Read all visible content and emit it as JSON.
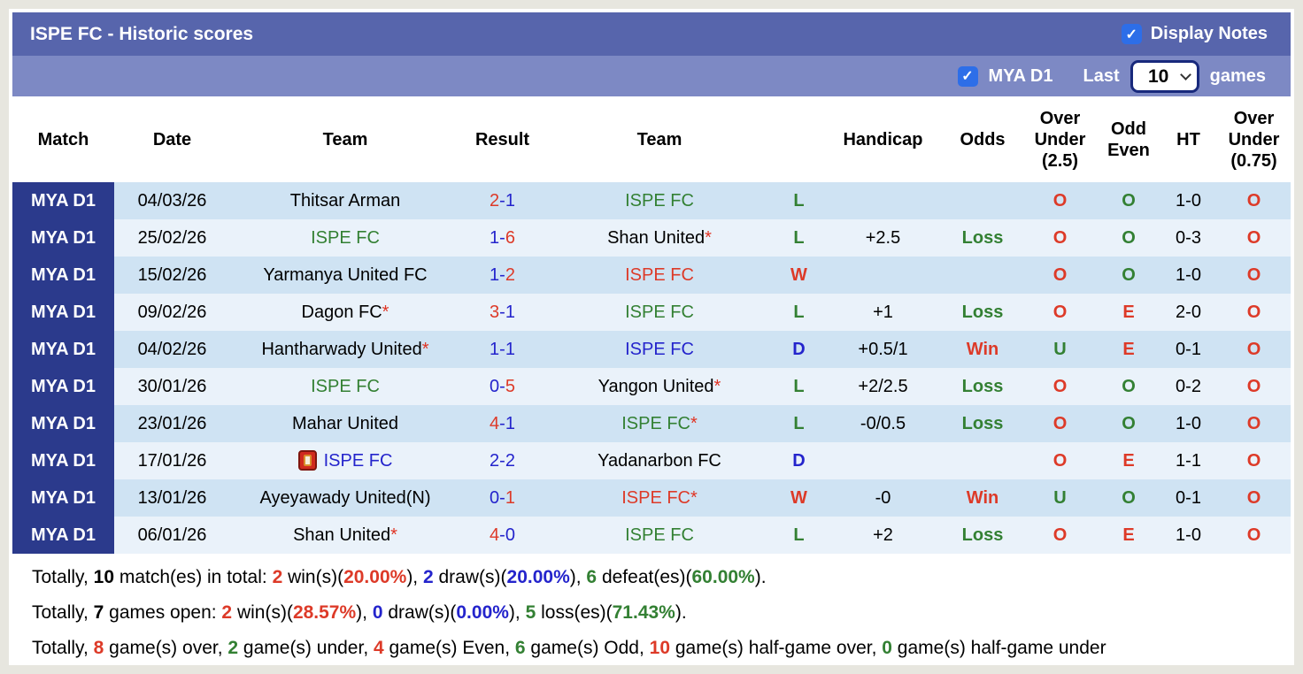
{
  "header": {
    "title": "ISPE FC - Historic scores",
    "display_notes_label": "Display Notes",
    "display_notes_checked": true
  },
  "filter": {
    "league_label": "MYA D1",
    "league_checked": true,
    "last_label": "Last",
    "games_count": "10",
    "games_label": "games"
  },
  "icons": {
    "checkmark": "✓",
    "red_card": "red-card-icon"
  },
  "colors": {
    "bar1": "#5765ac",
    "bar2": "#7d89c4",
    "badge": "#2b3a8c",
    "row_blue": "#cfe3f3",
    "row_light": "#eaf2fa",
    "win_red": "#dd3a28",
    "loss_green": "#338033",
    "draw_blue": "#2424cc",
    "checkbox_blue": "#2d6ee8"
  },
  "table": {
    "columns": [
      "Match",
      "Date",
      "Team",
      "Result",
      "Team",
      "",
      "Handicap",
      "Odds",
      "Over\nUnder\n(2.5)",
      "Odd\nEven",
      "HT",
      "Over\nUnder\n(0.75)"
    ],
    "rows": [
      {
        "match": "MYA D1",
        "date": "04/03/26",
        "home": {
          "name": "Thitsar Arman",
          "color": "black",
          "star": false,
          "icon": false
        },
        "score": {
          "home": "2",
          "home_color": "red",
          "away": "1",
          "away_color": "blue"
        },
        "away": {
          "name": "ISPE FC",
          "color": "green",
          "star": false,
          "icon": false
        },
        "wld": {
          "text": "L",
          "color": "green"
        },
        "handicap": "",
        "odds": {
          "text": "",
          "color": ""
        },
        "ou25": {
          "text": "O",
          "color": "red"
        },
        "oddeven": {
          "text": "O",
          "color": "green"
        },
        "ht": "1-0",
        "ou075": {
          "text": "O",
          "color": "red"
        }
      },
      {
        "match": "MYA D1",
        "date": "25/02/26",
        "home": {
          "name": "ISPE FC",
          "color": "green",
          "star": false,
          "icon": false
        },
        "score": {
          "home": "1",
          "home_color": "blue",
          "away": "6",
          "away_color": "red"
        },
        "away": {
          "name": "Shan United",
          "color": "black",
          "star": true,
          "icon": false
        },
        "wld": {
          "text": "L",
          "color": "green"
        },
        "handicap": "+2.5",
        "odds": {
          "text": "Loss",
          "color": "green"
        },
        "ou25": {
          "text": "O",
          "color": "red"
        },
        "oddeven": {
          "text": "O",
          "color": "green"
        },
        "ht": "0-3",
        "ou075": {
          "text": "O",
          "color": "red"
        }
      },
      {
        "match": "MYA D1",
        "date": "15/02/26",
        "home": {
          "name": "Yarmanya United FC",
          "color": "black",
          "star": false,
          "icon": false
        },
        "score": {
          "home": "1",
          "home_color": "blue",
          "away": "2",
          "away_color": "red"
        },
        "away": {
          "name": "ISPE FC",
          "color": "red",
          "star": false,
          "icon": false
        },
        "wld": {
          "text": "W",
          "color": "red"
        },
        "handicap": "",
        "odds": {
          "text": "",
          "color": ""
        },
        "ou25": {
          "text": "O",
          "color": "red"
        },
        "oddeven": {
          "text": "O",
          "color": "green"
        },
        "ht": "1-0",
        "ou075": {
          "text": "O",
          "color": "red"
        }
      },
      {
        "match": "MYA D1",
        "date": "09/02/26",
        "home": {
          "name": "Dagon FC",
          "color": "black",
          "star": true,
          "icon": false
        },
        "score": {
          "home": "3",
          "home_color": "red",
          "away": "1",
          "away_color": "blue"
        },
        "away": {
          "name": "ISPE FC",
          "color": "green",
          "star": false,
          "icon": false
        },
        "wld": {
          "text": "L",
          "color": "green"
        },
        "handicap": "+1",
        "odds": {
          "text": "Loss",
          "color": "green"
        },
        "ou25": {
          "text": "O",
          "color": "red"
        },
        "oddeven": {
          "text": "E",
          "color": "red"
        },
        "ht": "2-0",
        "ou075": {
          "text": "O",
          "color": "red"
        }
      },
      {
        "match": "MYA D1",
        "date": "04/02/26",
        "home": {
          "name": "Hantharwady United",
          "color": "black",
          "star": true,
          "icon": false
        },
        "score": {
          "home": "1",
          "home_color": "blue",
          "away": "1",
          "away_color": "blue"
        },
        "away": {
          "name": "ISPE FC",
          "color": "blue",
          "star": false,
          "icon": false
        },
        "wld": {
          "text": "D",
          "color": "blue"
        },
        "handicap": "+0.5/1",
        "odds": {
          "text": "Win",
          "color": "red"
        },
        "ou25": {
          "text": "U",
          "color": "green"
        },
        "oddeven": {
          "text": "E",
          "color": "red"
        },
        "ht": "0-1",
        "ou075": {
          "text": "O",
          "color": "red"
        }
      },
      {
        "match": "MYA D1",
        "date": "30/01/26",
        "home": {
          "name": "ISPE FC",
          "color": "green",
          "star": false,
          "icon": false
        },
        "score": {
          "home": "0",
          "home_color": "blue",
          "away": "5",
          "away_color": "red"
        },
        "away": {
          "name": "Yangon United",
          "color": "black",
          "star": true,
          "icon": false
        },
        "wld": {
          "text": "L",
          "color": "green"
        },
        "handicap": "+2/2.5",
        "odds": {
          "text": "Loss",
          "color": "green"
        },
        "ou25": {
          "text": "O",
          "color": "red"
        },
        "oddeven": {
          "text": "O",
          "color": "green"
        },
        "ht": "0-2",
        "ou075": {
          "text": "O",
          "color": "red"
        }
      },
      {
        "match": "MYA D1",
        "date": "23/01/26",
        "home": {
          "name": "Mahar United",
          "color": "black",
          "star": false,
          "icon": false
        },
        "score": {
          "home": "4",
          "home_color": "red",
          "away": "1",
          "away_color": "blue"
        },
        "away": {
          "name": "ISPE FC",
          "color": "green",
          "star": true,
          "icon": false
        },
        "wld": {
          "text": "L",
          "color": "green"
        },
        "handicap": "-0/0.5",
        "odds": {
          "text": "Loss",
          "color": "green"
        },
        "ou25": {
          "text": "O",
          "color": "red"
        },
        "oddeven": {
          "text": "O",
          "color": "green"
        },
        "ht": "1-0",
        "ou075": {
          "text": "O",
          "color": "red"
        }
      },
      {
        "match": "MYA D1",
        "date": "17/01/26",
        "home": {
          "name": "ISPE FC",
          "color": "blue",
          "star": false,
          "icon": true
        },
        "score": {
          "home": "2",
          "home_color": "blue",
          "away": "2",
          "away_color": "blue"
        },
        "away": {
          "name": "Yadanarbon FC",
          "color": "black",
          "star": false,
          "icon": false
        },
        "wld": {
          "text": "D",
          "color": "blue"
        },
        "handicap": "",
        "odds": {
          "text": "",
          "color": ""
        },
        "ou25": {
          "text": "O",
          "color": "red"
        },
        "oddeven": {
          "text": "E",
          "color": "red"
        },
        "ht": "1-1",
        "ou075": {
          "text": "O",
          "color": "red"
        }
      },
      {
        "match": "MYA D1",
        "date": "13/01/26",
        "home": {
          "name": "Ayeyawady United(N)",
          "color": "black",
          "star": false,
          "icon": false
        },
        "score": {
          "home": "0",
          "home_color": "blue",
          "away": "1",
          "away_color": "red"
        },
        "away": {
          "name": "ISPE FC",
          "color": "red",
          "star": true,
          "icon": false
        },
        "wld": {
          "text": "W",
          "color": "red"
        },
        "handicap": "-0",
        "odds": {
          "text": "Win",
          "color": "red"
        },
        "ou25": {
          "text": "U",
          "color": "green"
        },
        "oddeven": {
          "text": "O",
          "color": "green"
        },
        "ht": "0-1",
        "ou075": {
          "text": "O",
          "color": "red"
        }
      },
      {
        "match": "MYA D1",
        "date": "06/01/26",
        "home": {
          "name": "Shan United",
          "color": "black",
          "star": true,
          "icon": false
        },
        "score": {
          "home": "4",
          "home_color": "red",
          "away": "0",
          "away_color": "blue"
        },
        "away": {
          "name": "ISPE FC",
          "color": "green",
          "star": false,
          "icon": false
        },
        "wld": {
          "text": "L",
          "color": "green"
        },
        "handicap": "+2",
        "odds": {
          "text": "Loss",
          "color": "green"
        },
        "ou25": {
          "text": "O",
          "color": "red"
        },
        "oddeven": {
          "text": "E",
          "color": "red"
        },
        "ht": "1-0",
        "ou075": {
          "text": "O",
          "color": "red"
        }
      }
    ]
  },
  "summary": {
    "lines": [
      {
        "parts": [
          {
            "text": "Totally, ",
            "style": "plain"
          },
          {
            "text": "10",
            "style": "bold"
          },
          {
            "text": " match(es) in total: ",
            "style": "plain"
          },
          {
            "text": "2",
            "style": "red"
          },
          {
            "text": " win(s)(",
            "style": "plain"
          },
          {
            "text": "20.00%",
            "style": "red"
          },
          {
            "text": "), ",
            "style": "plain"
          },
          {
            "text": "2",
            "style": "blue"
          },
          {
            "text": " draw(s)(",
            "style": "plain"
          },
          {
            "text": "20.00%",
            "style": "blue"
          },
          {
            "text": "), ",
            "style": "plain"
          },
          {
            "text": "6",
            "style": "green"
          },
          {
            "text": " defeat(es)(",
            "style": "plain"
          },
          {
            "text": "60.00%",
            "style": "green"
          },
          {
            "text": ").",
            "style": "plain"
          }
        ]
      },
      {
        "parts": [
          {
            "text": "Totally, ",
            "style": "plain"
          },
          {
            "text": "7",
            "style": "bold"
          },
          {
            "text": " games open: ",
            "style": "plain"
          },
          {
            "text": "2",
            "style": "red"
          },
          {
            "text": " win(s)(",
            "style": "plain"
          },
          {
            "text": "28.57%",
            "style": "red"
          },
          {
            "text": "), ",
            "style": "plain"
          },
          {
            "text": "0",
            "style": "blue"
          },
          {
            "text": " draw(s)(",
            "style": "plain"
          },
          {
            "text": "0.00%",
            "style": "blue"
          },
          {
            "text": "), ",
            "style": "plain"
          },
          {
            "text": "5",
            "style": "green"
          },
          {
            "text": " loss(es)(",
            "style": "plain"
          },
          {
            "text": "71.43%",
            "style": "green"
          },
          {
            "text": ").",
            "style": "plain"
          }
        ]
      },
      {
        "parts": [
          {
            "text": "Totally, ",
            "style": "plain"
          },
          {
            "text": "8",
            "style": "red"
          },
          {
            "text": " game(s) over, ",
            "style": "plain"
          },
          {
            "text": "2",
            "style": "green"
          },
          {
            "text": " game(s) under, ",
            "style": "plain"
          },
          {
            "text": "4",
            "style": "red"
          },
          {
            "text": " game(s) Even, ",
            "style": "plain"
          },
          {
            "text": "6",
            "style": "green"
          },
          {
            "text": " game(s) Odd, ",
            "style": "plain"
          },
          {
            "text": "10",
            "style": "red"
          },
          {
            "text": " game(s) half-game over, ",
            "style": "plain"
          },
          {
            "text": "0",
            "style": "green"
          },
          {
            "text": " game(s) half-game under",
            "style": "plain"
          }
        ]
      }
    ]
  }
}
